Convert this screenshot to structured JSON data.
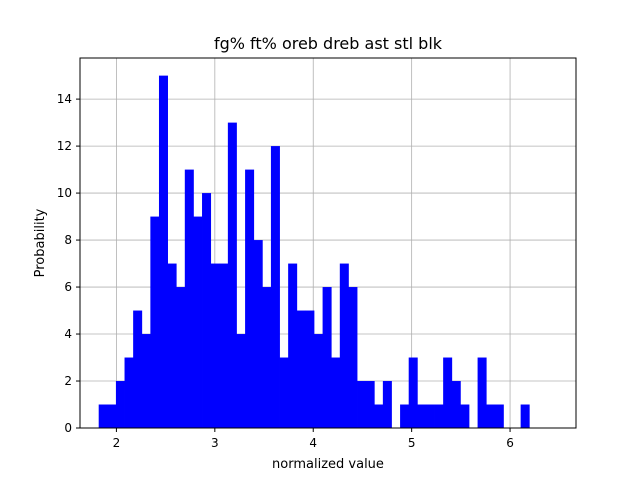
{
  "chart_data": {
    "type": "bar",
    "subtype": "histogram",
    "title": "fg% ft% oreb dreb ast stl blk",
    "xlabel": "normalized value",
    "ylabel": "Probability",
    "xlim": [
      1.63,
      6.67
    ],
    "ylim": [
      0,
      15.75
    ],
    "xticks": [
      2,
      3,
      4,
      5,
      6
    ],
    "yticks": [
      0,
      2,
      4,
      6,
      8,
      10,
      12,
      14
    ],
    "grid": true,
    "bar_color": "#0000ff",
    "bin_start": 1.82,
    "bin_width": 0.0875,
    "values": [
      1,
      1,
      2,
      3,
      5,
      4,
      9,
      15,
      7,
      6,
      11,
      9,
      10,
      7,
      7,
      13,
      4,
      11,
      8,
      6,
      12,
      3,
      7,
      5,
      5,
      4,
      6,
      3,
      7,
      6,
      2,
      2,
      1,
      2,
      0,
      1,
      3,
      1,
      1,
      1,
      3,
      2,
      1,
      0,
      3,
      1,
      1,
      0,
      0,
      1
    ]
  }
}
